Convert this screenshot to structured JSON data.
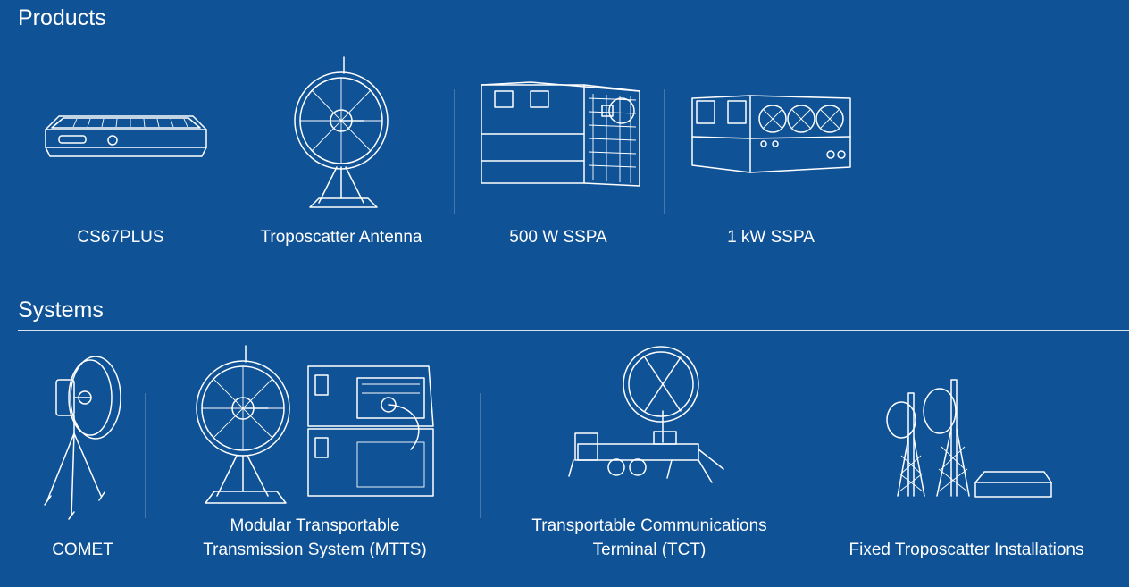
{
  "products": {
    "title": "Products",
    "items": [
      {
        "label": "CS67PLUS",
        "icon": "cs67plus-modem-icon"
      },
      {
        "label": "Troposcatter Antenna",
        "icon": "troposcatter-antenna-icon"
      },
      {
        "label": "500 W SSPA",
        "icon": "sspa-500w-icon"
      },
      {
        "label": "1 kW SSPA",
        "icon": "sspa-1kw-icon"
      }
    ]
  },
  "systems": {
    "title": "Systems",
    "items": [
      {
        "label": "COMET",
        "icon": "comet-tripod-antenna-icon"
      },
      {
        "label_line1": "Modular Transportable",
        "label_line2": "Transmission System (MTTS)",
        "icon": "mtts-icon"
      },
      {
        "label_line1": "Transportable Communications",
        "label_line2": "Terminal (TCT)",
        "icon": "tct-trailer-icon"
      },
      {
        "label": "Fixed Troposcatter Installations",
        "icon": "fixed-tower-installation-icon"
      }
    ]
  },
  "colors": {
    "background": "#0f5296",
    "line_art": "#ffffff"
  }
}
